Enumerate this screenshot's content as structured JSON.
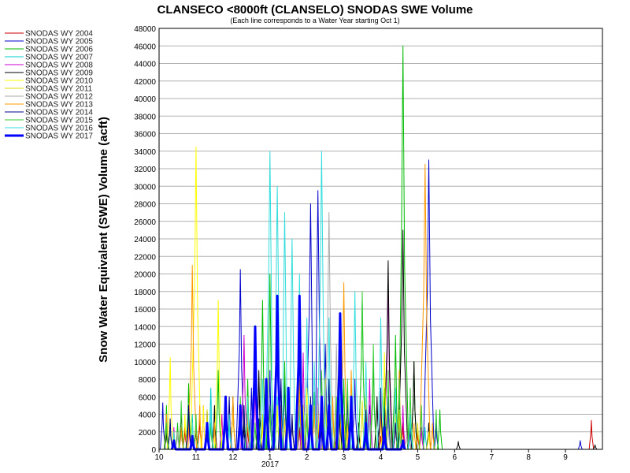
{
  "chart_data": {
    "type": "line",
    "title": "CLANSECO <8000ft (CLANSELO) SNODAS SWE Volume",
    "subtitle": "(Each line corresponds to a Water Year starting Oct 1)",
    "ylabel": "Snow Water Equivalent (SWE) Volume (acft)",
    "xlabel": "",
    "ylim": [
      0,
      48000
    ],
    "yticks": [
      0,
      2000,
      4000,
      6000,
      8000,
      10000,
      12000,
      14000,
      16000,
      18000,
      20000,
      22000,
      24000,
      26000,
      28000,
      30000,
      32000,
      34000,
      36000,
      38000,
      40000,
      42000,
      44000,
      46000,
      48000
    ],
    "xticks": [
      {
        "label": "10",
        "month": 10
      },
      {
        "label": "11",
        "month": 11
      },
      {
        "label": "12",
        "month": 12
      },
      {
        "label": "1",
        "month": 13
      },
      {
        "label": "2",
        "month": 14
      },
      {
        "label": "3",
        "month": 15
      },
      {
        "label": "4",
        "month": 16
      },
      {
        "label": "5",
        "month": 17
      },
      {
        "label": "6",
        "month": 18
      },
      {
        "label": "7",
        "month": 19
      },
      {
        "label": "8",
        "month": 20
      },
      {
        "label": "9",
        "month": 21
      }
    ],
    "year_label": "2017",
    "grid": true,
    "legend_position": "left",
    "series": [
      {
        "name": "SNODAS WY 2004",
        "color": "#cc0000",
        "width": 1,
        "peaks": [
          [
            10.3,
            3000
          ],
          [
            10.7,
            2500
          ],
          [
            11.1,
            3500
          ],
          [
            11.9,
            4000
          ],
          [
            12.4,
            2500
          ],
          [
            13.3,
            4500
          ],
          [
            13.8,
            2500
          ],
          [
            14.3,
            3000
          ],
          [
            14.8,
            1800
          ],
          [
            15.4,
            2500
          ],
          [
            16.0,
            1500
          ],
          [
            16.6,
            3000
          ],
          [
            17.0,
            2000
          ],
          [
            21.7,
            3300
          ]
        ]
      },
      {
        "name": "SNODAS WY 2005",
        "color": "#0000cc",
        "width": 1,
        "peaks": [
          [
            10.1,
            5300
          ],
          [
            10.6,
            2500
          ],
          [
            11.3,
            4500
          ],
          [
            11.8,
            6000
          ],
          [
            12.2,
            20500
          ],
          [
            12.5,
            7000
          ],
          [
            13.0,
            9000
          ],
          [
            13.4,
            8000
          ],
          [
            14.1,
            28000
          ],
          [
            14.3,
            29500
          ],
          [
            14.5,
            12000
          ],
          [
            14.9,
            6000
          ],
          [
            15.3,
            8000
          ],
          [
            15.7,
            5000
          ],
          [
            16.2,
            6000
          ],
          [
            16.5,
            4000
          ],
          [
            17.3,
            33000
          ],
          [
            17.5,
            3000
          ],
          [
            21.4,
            1000
          ]
        ]
      },
      {
        "name": "SNODAS WY 2006",
        "color": "#00bb00",
        "width": 1,
        "peaks": [
          [
            10.2,
            5000
          ],
          [
            10.5,
            3000
          ],
          [
            10.8,
            7500
          ],
          [
            11.3,
            3500
          ],
          [
            11.6,
            9000
          ],
          [
            12.0,
            6000
          ],
          [
            12.4,
            8000
          ],
          [
            12.8,
            17000
          ],
          [
            13.0,
            20000
          ],
          [
            13.4,
            10000
          ],
          [
            13.8,
            8000
          ],
          [
            14.2,
            6500
          ],
          [
            14.6,
            5000
          ],
          [
            15.0,
            8000
          ],
          [
            15.5,
            17000
          ],
          [
            15.8,
            10000
          ],
          [
            16.1,
            7000
          ],
          [
            16.4,
            13000
          ],
          [
            16.6,
            46000
          ],
          [
            16.9,
            10000
          ],
          [
            17.6,
            4500
          ]
        ]
      },
      {
        "name": "SNODAS WY 2007",
        "color": "#00cccc",
        "width": 1,
        "peaks": [
          [
            10.3,
            3000
          ],
          [
            10.9,
            4000
          ],
          [
            11.4,
            7000
          ],
          [
            11.9,
            3000
          ],
          [
            12.3,
            5000
          ],
          [
            12.7,
            3000
          ],
          [
            13.2,
            6000
          ],
          [
            13.8,
            5000
          ],
          [
            14.5,
            7000
          ],
          [
            15.0,
            3000
          ],
          [
            15.6,
            4000
          ],
          [
            16.1,
            5000
          ],
          [
            16.5,
            3000
          ],
          [
            17.2,
            2500
          ]
        ]
      },
      {
        "name": "SNODAS WY 2008",
        "color": "#cc00cc",
        "width": 1,
        "peaks": [
          [
            10.4,
            2500
          ],
          [
            10.8,
            3500
          ],
          [
            11.2,
            5000
          ],
          [
            11.7,
            4000
          ],
          [
            12.3,
            13000
          ],
          [
            12.6,
            7500
          ],
          [
            13.0,
            5000
          ],
          [
            13.5,
            6000
          ],
          [
            13.9,
            11000
          ],
          [
            14.3,
            7000
          ],
          [
            14.8,
            5500
          ],
          [
            15.2,
            4000
          ],
          [
            15.7,
            8000
          ],
          [
            16.2,
            19000
          ],
          [
            16.6,
            5000
          ],
          [
            17.1,
            2500
          ]
        ]
      },
      {
        "name": "SNODAS WY 2009",
        "color": "#000000",
        "width": 1,
        "peaks": [
          [
            10.2,
            2000
          ],
          [
            10.6,
            4500
          ],
          [
            11.0,
            3000
          ],
          [
            11.5,
            5000
          ],
          [
            12.0,
            6000
          ],
          [
            12.3,
            3500
          ],
          [
            12.7,
            9000
          ],
          [
            13.1,
            4000
          ],
          [
            13.6,
            3500
          ],
          [
            14.0,
            5000
          ],
          [
            14.4,
            3000
          ],
          [
            14.9,
            4000
          ],
          [
            15.4,
            3000
          ],
          [
            15.9,
            6000
          ],
          [
            16.2,
            21500
          ],
          [
            16.4,
            6000
          ],
          [
            16.6,
            25000
          ],
          [
            16.9,
            10000
          ],
          [
            17.3,
            3000
          ],
          [
            18.1,
            900
          ],
          [
            21.8,
            500
          ]
        ]
      },
      {
        "name": "SNODAS WY 2010",
        "color": "#ffff00",
        "width": 1,
        "peaks": [
          [
            10.3,
            10500
          ],
          [
            10.7,
            4000
          ],
          [
            11.0,
            34500
          ],
          [
            11.2,
            5000
          ],
          [
            11.6,
            17000
          ],
          [
            12.0,
            5000
          ],
          [
            12.4,
            6000
          ],
          [
            12.8,
            3000
          ],
          [
            13.2,
            5000
          ],
          [
            13.6,
            4000
          ],
          [
            14.0,
            7000
          ],
          [
            14.3,
            5000
          ],
          [
            14.7,
            5000
          ],
          [
            15.1,
            3000
          ],
          [
            15.6,
            6000
          ],
          [
            16.1,
            11000
          ],
          [
            16.4,
            4000
          ],
          [
            16.8,
            3000
          ],
          [
            17.3,
            2000
          ]
        ]
      },
      {
        "name": "SNODAS WY 2011",
        "color": "#dddd00",
        "width": 1,
        "peaks": [
          [
            10.4,
            2000
          ],
          [
            10.9,
            3000
          ],
          [
            11.3,
            4500
          ],
          [
            11.8,
            3500
          ],
          [
            12.3,
            5000
          ],
          [
            12.8,
            4000
          ],
          [
            13.4,
            3500
          ],
          [
            13.9,
            5000
          ],
          [
            14.5,
            8000
          ],
          [
            15.0,
            4000
          ],
          [
            15.5,
            5500
          ],
          [
            16.0,
            6000
          ],
          [
            16.5,
            4500
          ],
          [
            17.0,
            3000
          ]
        ]
      },
      {
        "name": "SNODAS WY 2012",
        "color": "#aaaaaa",
        "width": 1,
        "peaks": [
          [
            10.5,
            2000
          ],
          [
            11.0,
            4000
          ],
          [
            11.5,
            3000
          ],
          [
            12.0,
            6000
          ],
          [
            12.5,
            3500
          ],
          [
            13.0,
            5000
          ],
          [
            13.5,
            3000
          ],
          [
            14.0,
            5000
          ],
          [
            14.6,
            27000
          ],
          [
            14.8,
            12000
          ],
          [
            15.2,
            6000
          ],
          [
            15.7,
            4000
          ],
          [
            16.2,
            3000
          ],
          [
            16.7,
            2000
          ]
        ]
      },
      {
        "name": "SNODAS WY 2013",
        "color": "#ff9900",
        "width": 1,
        "peaks": [
          [
            10.2,
            4000
          ],
          [
            10.6,
            2500
          ],
          [
            10.9,
            21000
          ],
          [
            11.1,
            5000
          ],
          [
            11.5,
            3000
          ],
          [
            12.0,
            6000
          ],
          [
            12.4,
            4000
          ],
          [
            12.9,
            7000
          ],
          [
            13.3,
            5000
          ],
          [
            13.8,
            8000
          ],
          [
            14.2,
            5000
          ],
          [
            14.7,
            6000
          ],
          [
            15.0,
            19000
          ],
          [
            15.2,
            9000
          ],
          [
            15.6,
            5000
          ],
          [
            16.0,
            4000
          ],
          [
            16.5,
            9000
          ],
          [
            16.9,
            3000
          ],
          [
            17.2,
            32500
          ],
          [
            17.4,
            3000
          ]
        ]
      },
      {
        "name": "SNODAS WY 2014",
        "color": "#000088",
        "width": 1,
        "peaks": [
          [
            10.3,
            3500
          ],
          [
            10.8,
            5000
          ],
          [
            11.3,
            3000
          ],
          [
            11.9,
            6000
          ],
          [
            12.3,
            5000
          ],
          [
            12.7,
            3500
          ],
          [
            13.3,
            8000
          ],
          [
            13.6,
            4000
          ],
          [
            14.1,
            6000
          ],
          [
            14.6,
            8000
          ],
          [
            15.1,
            6000
          ],
          [
            15.6,
            4500
          ],
          [
            16.0,
            7000
          ],
          [
            16.4,
            3000
          ],
          [
            16.8,
            2500
          ]
        ]
      },
      {
        "name": "SNODAS WY 2015",
        "color": "#33cc33",
        "width": 1,
        "peaks": [
          [
            10.2,
            3000
          ],
          [
            10.6,
            5500
          ],
          [
            11.0,
            4000
          ],
          [
            11.4,
            3000
          ],
          [
            11.8,
            4500
          ],
          [
            12.2,
            6000
          ],
          [
            12.6,
            3000
          ],
          [
            13.0,
            5000
          ],
          [
            13.5,
            6000
          ],
          [
            14.0,
            4000
          ],
          [
            14.4,
            9000
          ],
          [
            14.8,
            6000
          ],
          [
            15.1,
            8000
          ],
          [
            15.5,
            18000
          ],
          [
            15.8,
            12000
          ],
          [
            16.2,
            9000
          ],
          [
            16.5,
            8000
          ],
          [
            16.8,
            7000
          ],
          [
            17.1,
            5000
          ],
          [
            17.5,
            4500
          ]
        ]
      },
      {
        "name": "SNODAS WY 2016",
        "color": "#33dddd",
        "width": 1,
        "peaks": [
          [
            10.4,
            2000
          ],
          [
            10.9,
            3000
          ],
          [
            11.4,
            5000
          ],
          [
            11.9,
            4000
          ],
          [
            12.4,
            6000
          ],
          [
            12.8,
            8000
          ],
          [
            13.0,
            34000
          ],
          [
            13.2,
            30000
          ],
          [
            13.4,
            27000
          ],
          [
            13.6,
            24000
          ],
          [
            13.8,
            20000
          ],
          [
            14.0,
            15000
          ],
          [
            14.2,
            10000
          ],
          [
            14.4,
            34000
          ],
          [
            14.6,
            15000
          ],
          [
            14.9,
            8000
          ],
          [
            15.3,
            18000
          ],
          [
            15.6,
            10000
          ],
          [
            16.0,
            15000
          ],
          [
            16.4,
            7000
          ],
          [
            16.8,
            4000
          ]
        ]
      },
      {
        "name": "SNODAS WY 2017",
        "color": "#0000ff",
        "width": 3,
        "peaks": [
          [
            10.4,
            1000
          ],
          [
            10.9,
            1500
          ],
          [
            11.3,
            3000
          ],
          [
            11.8,
            6000
          ],
          [
            12.2,
            5000
          ],
          [
            12.6,
            14000
          ],
          [
            12.9,
            8000
          ],
          [
            13.2,
            17500
          ],
          [
            13.5,
            7000
          ],
          [
            13.8,
            17500
          ],
          [
            14.1,
            5000
          ],
          [
            14.4,
            6000
          ],
          [
            14.6,
            5000
          ],
          [
            14.9,
            15500
          ],
          [
            15.2,
            6000
          ],
          [
            15.6,
            3000
          ],
          [
            16.1,
            2500
          ],
          [
            16.6,
            1000
          ]
        ]
      }
    ]
  }
}
